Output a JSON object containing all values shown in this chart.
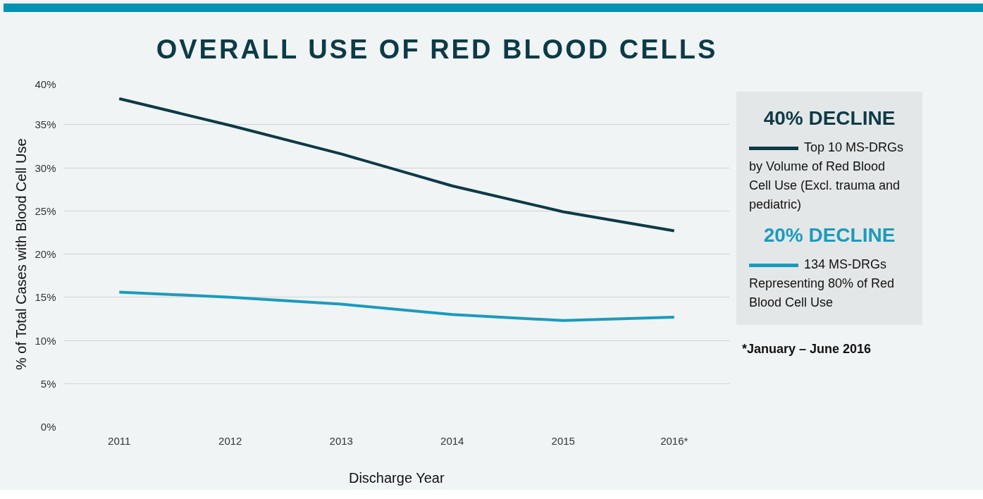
{
  "chart_data": {
    "type": "line",
    "title": "OVERALL USE OF RED BLOOD CELLS",
    "xlabel": "Discharge Year",
    "ylabel": "% of Total Cases with Blood Cell Use",
    "categories": [
      "2011",
      "2012",
      "2013",
      "2014",
      "2015",
      "2016*"
    ],
    "series": [
      {
        "name": "Top 10 MS-DRGs by Volume of Red Blood Cell Use (Excl. trauma and pediatric)",
        "color": "#0d3a47",
        "values": [
          38.0,
          34.9,
          31.6,
          27.9,
          24.9,
          22.7
        ]
      },
      {
        "name": "134 MS-DRGs Representing 80% of Red Blood Cell Use",
        "color": "#1a9bbd",
        "values": [
          15.6,
          15.0,
          14.2,
          13.0,
          12.3,
          12.7
        ]
      }
    ],
    "ylim": [
      0,
      40
    ],
    "yticks": [
      {
        "value": 0,
        "label": "0%"
      },
      {
        "value": 5,
        "label": "5%"
      },
      {
        "value": 10,
        "label": "10%"
      },
      {
        "value": 15,
        "label": "15%"
      },
      {
        "value": 20,
        "label": "20%"
      },
      {
        "value": 25,
        "label": "25%"
      },
      {
        "value": 30,
        "label": "30%"
      },
      {
        "value": 35,
        "label": "35%"
      },
      {
        "value": 40,
        "label": "40%"
      }
    ],
    "grid": "y",
    "legend": "right",
    "marker": "none",
    "line_style": "solid",
    "annotations": [
      "40% DECLINE",
      "20% DECLINE",
      "*January – June 2016"
    ]
  }
}
